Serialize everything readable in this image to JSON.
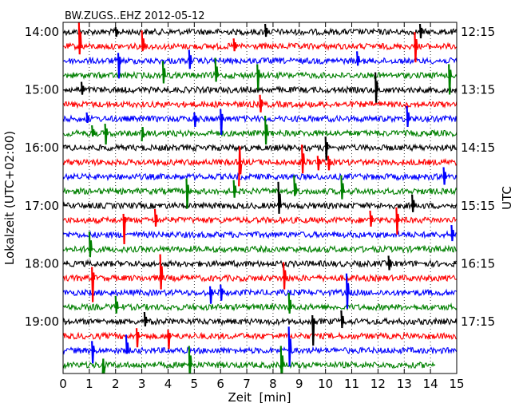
{
  "chart_data": {
    "type": "line",
    "title": "BW.ZUGS..EHZ 2012-05-12",
    "xlabel": "Zeit  [min]",
    "ylabel_left": "Lokalzeit (UTC+02:00)",
    "ylabel_right": "UTC",
    "xlim": [
      0,
      15
    ],
    "x_ticks": [
      "0",
      "1",
      "2",
      "3",
      "4",
      "5",
      "6",
      "7",
      "8",
      "9",
      "10",
      "11",
      "12",
      "13",
      "14",
      "15"
    ],
    "left_ticks": [
      {
        "label": "14:00",
        "row": 0
      },
      {
        "label": "15:00",
        "row": 4
      },
      {
        "label": "16:00",
        "row": 8
      },
      {
        "label": "17:00",
        "row": 12
      },
      {
        "label": "18:00",
        "row": 16
      },
      {
        "label": "19:00",
        "row": 20
      }
    ],
    "right_ticks": [
      {
        "label": "12:15",
        "row": 0
      },
      {
        "label": "13:15",
        "row": 4
      },
      {
        "label": "14:15",
        "row": 8
      },
      {
        "label": "15:15",
        "row": 12
      },
      {
        "label": "16:15",
        "row": 16
      },
      {
        "label": "17:15",
        "row": 20
      }
    ],
    "row_count": 24,
    "trace_minutes": 15,
    "last_trace_end_min": 14.2,
    "row_colors": [
      "#000000",
      "#ff0000",
      "#0000ff",
      "#008000"
    ],
    "vertical_grid": "dotted",
    "events": [
      [
        0.6,
        1,
        36,
        -10
      ],
      [
        0.7,
        4,
        10,
        -6
      ],
      [
        0.9,
        6,
        8,
        -5
      ],
      [
        1.1,
        7,
        10,
        -4
      ],
      [
        1.6,
        7,
        12,
        -14
      ],
      [
        1.0,
        15,
        22,
        -10
      ],
      [
        1.1,
        17,
        14,
        -30
      ],
      [
        1.1,
        22,
        12,
        -16
      ],
      [
        1.5,
        23,
        -20,
        8
      ],
      [
        2.0,
        0,
        6,
        -6
      ],
      [
        2.1,
        2,
        10,
        -22
      ],
      [
        2.0,
        19,
        14,
        -8
      ],
      [
        2.3,
        13,
        8,
        -30
      ],
      [
        2.4,
        22,
        20,
        -4
      ],
      [
        2.8,
        21,
        10,
        -14
      ],
      [
        3.0,
        1,
        20,
        -6
      ],
      [
        3.0,
        7,
        -10,
        8
      ],
      [
        3.1,
        20,
        12,
        -6
      ],
      [
        3.5,
        13,
        14,
        -8
      ],
      [
        3.8,
        3,
        18,
        -10
      ],
      [
        3.7,
        17,
        30,
        -14
      ],
      [
        4.0,
        21,
        8,
        -16
      ],
      [
        4.7,
        11,
        16,
        -22
      ],
      [
        4.8,
        2,
        14,
        -10
      ],
      [
        4.8,
        23,
        24,
        -20
      ],
      [
        5.0,
        6,
        8,
        -10
      ],
      [
        5.6,
        18,
        8,
        -14
      ],
      [
        5.8,
        3,
        22,
        -8
      ],
      [
        6.0,
        6,
        12,
        -20
      ],
      [
        6.0,
        18,
        10,
        -10
      ],
      [
        6.5,
        11,
        14,
        -8
      ],
      [
        6.7,
        9,
        -30,
        20
      ],
      [
        6.5,
        1,
        10,
        -6
      ],
      [
        7.4,
        3,
        14,
        -18
      ],
      [
        7.5,
        5,
        12,
        -10
      ],
      [
        7.7,
        0,
        10,
        -6
      ],
      [
        7.7,
        7,
        22,
        -14
      ],
      [
        8.2,
        12,
        30,
        -10
      ],
      [
        8.4,
        17,
        20,
        -14
      ],
      [
        8.3,
        23,
        24,
        -30
      ],
      [
        8.6,
        19,
        18,
        -8
      ],
      [
        8.6,
        22,
        30,
        -20
      ],
      [
        8.8,
        11,
        20,
        -6
      ],
      [
        9.1,
        9,
        22,
        -14
      ],
      [
        9.5,
        20,
        8,
        -30
      ],
      [
        9.7,
        9,
        8,
        -10
      ],
      [
        10.0,
        8,
        14,
        -16
      ],
      [
        10.1,
        9,
        8,
        -10
      ],
      [
        10.6,
        11,
        20,
        -10
      ],
      [
        10.6,
        20,
        14,
        -8
      ],
      [
        10.8,
        18,
        24,
        -20
      ],
      [
        11.2,
        2,
        12,
        -6
      ],
      [
        11.7,
        13,
        12,
        -8
      ],
      [
        11.9,
        4,
        22,
        -16
      ],
      [
        12.4,
        16,
        10,
        -8
      ],
      [
        12.7,
        13,
        16,
        -18
      ],
      [
        13.1,
        6,
        16,
        -10
      ],
      [
        13.3,
        12,
        14,
        -8
      ],
      [
        13.4,
        1,
        18,
        -20
      ],
      [
        13.6,
        0,
        10,
        -8
      ],
      [
        14.5,
        10,
        12,
        -10
      ],
      [
        14.7,
        3,
        14,
        -24
      ],
      [
        14.8,
        14,
        12,
        -8
      ]
    ]
  }
}
